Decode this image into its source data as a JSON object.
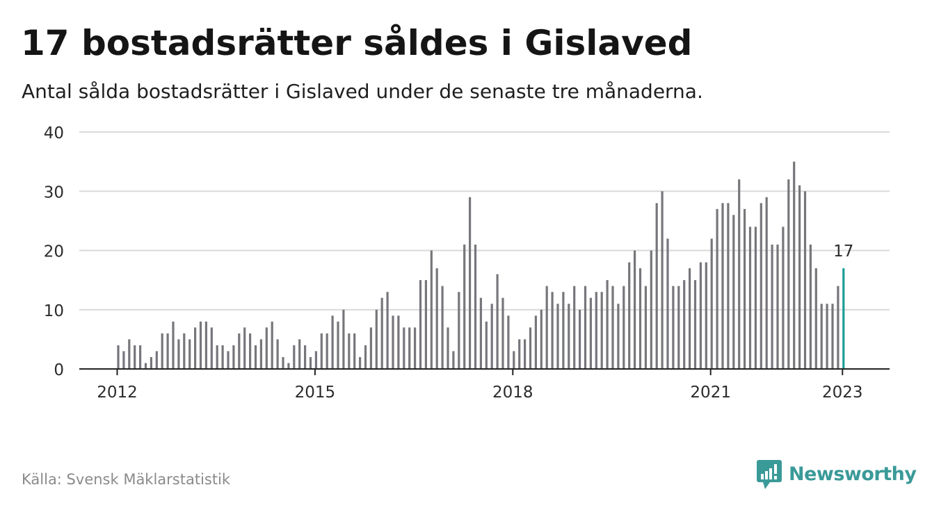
{
  "title": "17 bostadsrätter såldes i Gislaved",
  "subtitle": "Antal sålda bostadsrätter i Gislaved under de senaste tre månaderna.",
  "source": "Källa: Svensk Mäklarstatistik",
  "logo": {
    "text": "Newsworthy",
    "icon": "newsworthy-bar-chart-icon",
    "color": "#3a9a98"
  },
  "colors": {
    "bar": "#76767b",
    "highlight": "#1b9e96",
    "grid": "#d9d9d9",
    "axis": "#222222",
    "text": "#2b2b2b"
  },
  "chart_data": {
    "type": "bar",
    "title": "17 bostadsrätter såldes i Gislaved",
    "subtitle": "Antal sålda bostadsrätter i Gislaved under de senaste tre månaderna.",
    "xlabel": "",
    "ylabel": "",
    "ylim": [
      0,
      40
    ],
    "yticks": [
      0,
      10,
      20,
      30,
      40
    ],
    "xticks": [
      {
        "label": "2012",
        "value": 2012
      },
      {
        "label": "2015",
        "value": 2015
      },
      {
        "label": "2018",
        "value": 2018
      },
      {
        "label": "2021",
        "value": 2021
      },
      {
        "label": "2023",
        "value": 2023
      }
    ],
    "grid": true,
    "highlight_label": "17",
    "x_start": "2012-01",
    "x_end": "2023-01",
    "values": [
      4,
      3,
      5,
      4,
      4,
      1,
      2,
      3,
      6,
      6,
      8,
      5,
      6,
      5,
      7,
      8,
      8,
      7,
      4,
      4,
      3,
      4,
      6,
      7,
      6,
      4,
      5,
      7,
      8,
      5,
      2,
      1,
      4,
      5,
      4,
      2,
      3,
      6,
      6,
      9,
      8,
      10,
      6,
      6,
      2,
      4,
      7,
      10,
      12,
      13,
      9,
      9,
      7,
      7,
      7,
      15,
      15,
      20,
      17,
      14,
      7,
      3,
      13,
      21,
      29,
      21,
      12,
      8,
      11,
      16,
      12,
      9,
      3,
      5,
      5,
      7,
      9,
      10,
      14,
      13,
      11,
      13,
      11,
      14,
      10,
      14,
      12,
      13,
      13,
      15,
      14,
      11,
      14,
      18,
      20,
      17,
      14,
      20,
      28,
      30,
      22,
      14,
      14,
      15,
      17,
      15,
      18,
      18,
      22,
      27,
      28,
      28,
      26,
      32,
      27,
      24,
      24,
      28,
      29,
      21,
      21,
      24,
      32,
      35,
      31,
      30,
      21,
      17,
      11,
      11,
      11,
      14,
      17
    ]
  }
}
